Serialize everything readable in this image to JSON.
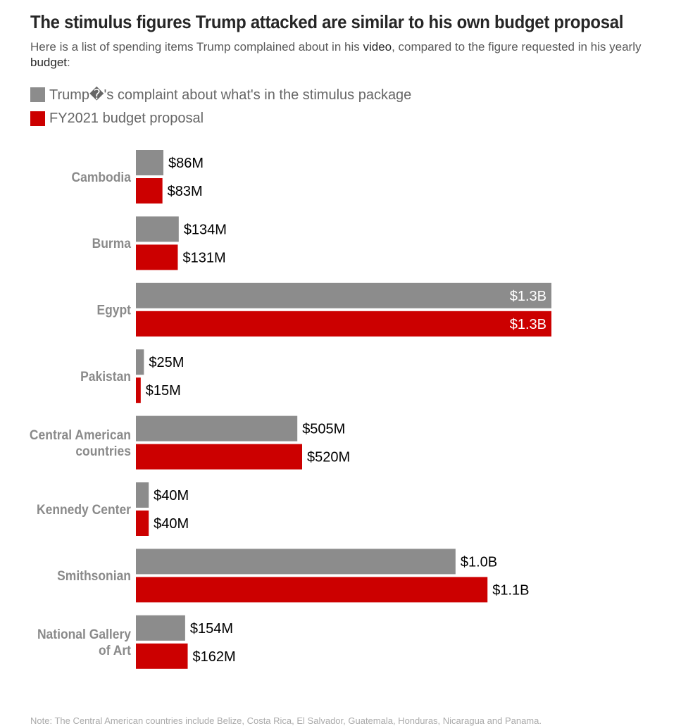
{
  "title": "The stimulus figures Trump attacked are similar to his own budget proposal",
  "subtitle": {
    "before_video": "Here is a list of spending items Trump complained about in his ",
    "video_link": "video",
    "after_video": ", compared to the figure requested in his yearly ",
    "budget_link": "budget",
    "end": ":"
  },
  "colors": {
    "complaint": "#8c8c8c",
    "budget": "#cc0000",
    "category_label": "#8a8a8a",
    "value_label": "#000000"
  },
  "chart_data": {
    "type": "bar",
    "orientation": "horizontal",
    "categories": [
      "Cambodia",
      "Burma",
      "Egypt",
      "Pakistan",
      "Central American countries",
      "Kennedy Center",
      "Smithsonian",
      "National Gallery of Art"
    ],
    "category_lines": [
      [
        "Cambodia"
      ],
      [
        "Burma"
      ],
      [
        "Egypt"
      ],
      [
        "Pakistan"
      ],
      [
        "Central American",
        "countries"
      ],
      [
        "Kennedy Center"
      ],
      [
        "Smithsonian"
      ],
      [
        "National Gallery",
        "of Art"
      ]
    ],
    "series": [
      {
        "name": "Trump's complaint about what's in the stimulus package",
        "legend_label": "Trump�'s complaint about what's in the stimulus package",
        "values": [
          86,
          134,
          1300,
          25,
          505,
          40,
          1000,
          154
        ],
        "labels": [
          "$86M",
          "$134M",
          "$1.3B",
          "$25M",
          "$505M",
          "$40M",
          "$1.0B",
          "$154M"
        ]
      },
      {
        "name": "FY2021 budget proposal",
        "legend_label": "FY2021 budget proposal",
        "values": [
          83,
          131,
          1300,
          15,
          520,
          40,
          1100,
          162
        ],
        "labels": [
          "$83M",
          "$131M",
          "$1.3B",
          "$15M",
          "$520M",
          "$40M",
          "$1.1B",
          "$162M"
        ]
      }
    ],
    "unit": "millions of dollars",
    "xlim": [
      0,
      1300
    ],
    "grid": false,
    "legend_position": "top-left"
  },
  "footnote": "Note: The Central American countries include Belize, Costa Rica, El Salvador, Guatemala, Honduras, Nicaragua and Panama."
}
